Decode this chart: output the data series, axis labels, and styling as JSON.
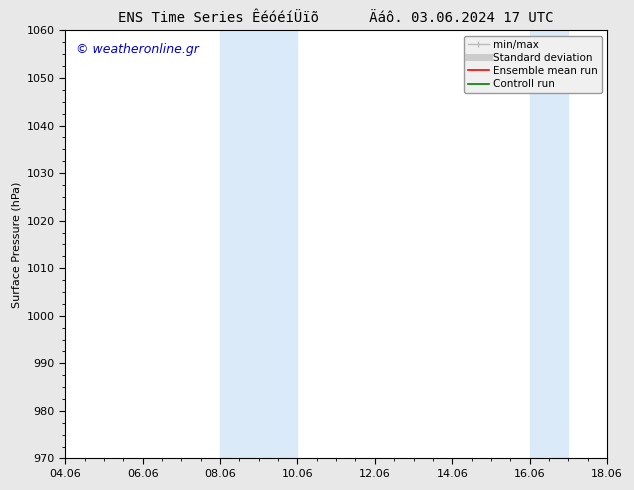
{
  "title": "ENS Time Series ÊéóéíÜïõ      Äáô. 03.06.2024 17 UTC",
  "ylabel": "Surface Pressure (hPa)",
  "ylim": [
    970,
    1060
  ],
  "yticks": [
    970,
    980,
    990,
    1000,
    1010,
    1020,
    1030,
    1040,
    1050,
    1060
  ],
  "xlim_start": 0,
  "xlim_end": 14,
  "xtick_labels": [
    "04.06",
    "06.06",
    "08.06",
    "10.06",
    "12.06",
    "14.06",
    "16.06",
    "18.06"
  ],
  "xtick_positions": [
    0,
    2,
    4,
    6,
    8,
    10,
    12,
    14
  ],
  "shaded_bands": [
    {
      "x_start": 4,
      "x_end": 6,
      "color": "#daeaf8"
    },
    {
      "x_start": 12,
      "x_end": 13,
      "color": "#daeaf8"
    }
  ],
  "legend_entries": [
    {
      "label": "min/max",
      "color": "#bbbbbb",
      "lw": 1.0
    },
    {
      "label": "Standard deviation",
      "color": "#cccccc",
      "lw": 5
    },
    {
      "label": "Ensemble mean run",
      "color": "red",
      "lw": 1.2
    },
    {
      "label": "Controll run",
      "color": "green",
      "lw": 1.2
    }
  ],
  "watermark": "© weatheronline.gr",
  "watermark_color": "#0000cc",
  "bg_color": "#e8e8e8",
  "plot_bg_color": "#ffffff",
  "title_fontsize": 10,
  "axis_fontsize": 8,
  "tick_fontsize": 8,
  "legend_fontsize": 7.5
}
